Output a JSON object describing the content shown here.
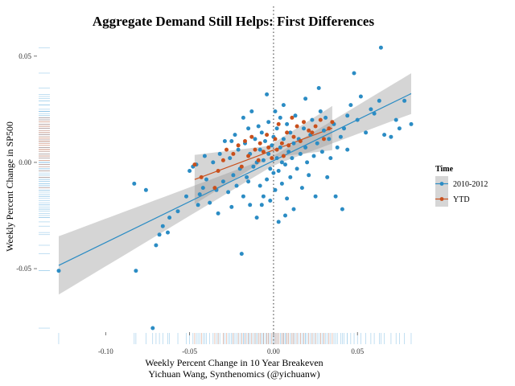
{
  "chart_data": {
    "type": "scatter",
    "title": "Aggregate Demand Still Helps: First Differences",
    "xlabel": "Weekly Percent Change in 10 Year Breakeven",
    "subtitle": "Yichuan Wang, Synthenomics (@yichuanw)",
    "ylabel": "Weekly Percent Change in SP500",
    "xlim": [
      -0.1275,
      0.0825
    ],
    "ylim": [
      -0.0795,
      0.0575
    ],
    "x_ticks": [
      -0.1,
      -0.05,
      0.0,
      0.05
    ],
    "x_tick_labels": [
      "-0.10",
      "-0.05",
      "0.00",
      "0.05"
    ],
    "y_ticks": [
      -0.05,
      0.0,
      0.05
    ],
    "y_tick_labels": [
      "-0.05",
      "0.00",
      "0.05"
    ],
    "vline_x": 0.0,
    "legend": {
      "title": "Time",
      "position": "right",
      "entries": [
        "2010-2012",
        "YTD"
      ]
    },
    "series": [
      {
        "name": "2010-2012",
        "color": "#2b8cc4",
        "fit": {
          "intercept": 0.0008,
          "slope": 0.385,
          "x_range": [
            -0.128,
            0.082
          ]
        },
        "band": {
          "se_at_center": 0.0022,
          "center": 0.0,
          "se_growth": 0.09
        },
        "points": [
          [
            -0.128,
            -0.051
          ],
          [
            -0.082,
            -0.051
          ],
          [
            -0.083,
            -0.01
          ],
          [
            -0.076,
            -0.013
          ],
          [
            -0.072,
            -0.078
          ],
          [
            -0.07,
            -0.039
          ],
          [
            -0.068,
            -0.034
          ],
          [
            -0.066,
            -0.03
          ],
          [
            -0.063,
            -0.033
          ],
          [
            -0.062,
            -0.026
          ],
          [
            -0.057,
            -0.023
          ],
          [
            -0.052,
            -0.016
          ],
          [
            -0.05,
            -0.004
          ],
          [
            -0.048,
            -0.002
          ],
          [
            -0.046,
            -0.001
          ],
          [
            -0.045,
            -0.02
          ],
          [
            -0.044,
            -0.015
          ],
          [
            -0.042,
            -0.012
          ],
          [
            -0.041,
            0.003
          ],
          [
            -0.04,
            -0.008
          ],
          [
            -0.038,
            -0.019
          ],
          [
            -0.036,
            0.0
          ],
          [
            -0.034,
            -0.013
          ],
          [
            -0.033,
            -0.024
          ],
          [
            -0.032,
            0.004
          ],
          [
            -0.03,
            -0.009
          ],
          [
            -0.029,
            0.01
          ],
          [
            -0.027,
            -0.014
          ],
          [
            -0.026,
            0.002
          ],
          [
            -0.025,
            -0.021
          ],
          [
            -0.024,
            -0.006
          ],
          [
            -0.023,
            0.013
          ],
          [
            -0.022,
            -0.011
          ],
          [
            -0.021,
            0.006
          ],
          [
            -0.02,
            -0.003
          ],
          [
            -0.019,
            -0.043
          ],
          [
            -0.018,
            0.021
          ],
          [
            -0.018,
            -0.016
          ],
          [
            -0.017,
            0.009
          ],
          [
            -0.016,
            -0.007
          ],
          [
            -0.015,
            0.016
          ],
          [
            -0.014,
            -0.02
          ],
          [
            -0.014,
            0.004
          ],
          [
            -0.013,
            0.024
          ],
          [
            -0.012,
            -0.002
          ],
          [
            -0.011,
            0.011
          ],
          [
            -0.01,
            -0.026
          ],
          [
            -0.01,
            0.0
          ],
          [
            -0.009,
            0.017
          ],
          [
            -0.008,
            -0.011
          ],
          [
            -0.008,
            0.006
          ],
          [
            -0.007,
            0.014
          ],
          [
            -0.006,
            -0.016
          ],
          [
            -0.006,
            0.001
          ],
          [
            -0.005,
            0.01
          ],
          [
            -0.004,
            0.032
          ],
          [
            -0.004,
            -0.008
          ],
          [
            -0.003,
            0.004
          ],
          [
            -0.003,
            0.019
          ],
          [
            -0.002,
            -0.018
          ],
          [
            -0.002,
            -0.003
          ],
          [
            -0.001,
            0.008
          ],
          [
            0.0,
            -0.005
          ],
          [
            0.0,
            0.012
          ],
          [
            0.001,
            0.024
          ],
          [
            0.001,
            -0.013
          ],
          [
            0.002,
            0.002
          ],
          [
            0.002,
            0.016
          ],
          [
            0.003,
            -0.028
          ],
          [
            0.003,
            -0.004
          ],
          [
            0.004,
            0.007
          ],
          [
            0.004,
            0.021
          ],
          [
            0.005,
            0.0
          ],
          [
            0.005,
            -0.01
          ],
          [
            0.006,
            0.011
          ],
          [
            0.006,
            0.027
          ],
          [
            0.007,
            -0.001
          ],
          [
            0.008,
            0.018
          ],
          [
            0.008,
            -0.017
          ],
          [
            0.009,
            0.005
          ],
          [
            0.01,
            -0.007
          ],
          [
            0.01,
            0.014
          ],
          [
            0.011,
            0.002
          ],
          [
            0.012,
            -0.022
          ],
          [
            0.012,
            0.009
          ],
          [
            0.013,
            0.022
          ],
          [
            0.014,
            -0.003
          ],
          [
            0.015,
            0.011
          ],
          [
            0.016,
            0.004
          ],
          [
            0.017,
            -0.012
          ],
          [
            0.018,
            0.016
          ],
          [
            0.019,
            0.007
          ],
          [
            0.02,
            0.0
          ],
          [
            0.021,
            -0.006
          ],
          [
            0.022,
            0.013
          ],
          [
            0.023,
            0.02
          ],
          [
            0.024,
            0.003
          ],
          [
            0.025,
            -0.016
          ],
          [
            0.026,
            0.009
          ],
          [
            0.027,
            0.035
          ],
          [
            0.028,
            0.024
          ],
          [
            0.029,
            0.005
          ],
          [
            0.03,
            0.015
          ],
          [
            0.032,
            -0.007
          ],
          [
            0.033,
            0.011
          ],
          [
            0.034,
            0.002
          ],
          [
            0.036,
            0.018
          ],
          [
            0.037,
            -0.016
          ],
          [
            0.038,
            0.007
          ],
          [
            0.04,
            0.012
          ],
          [
            0.041,
            -0.022
          ],
          [
            0.042,
            0.016
          ],
          [
            0.044,
            0.006
          ],
          [
            0.046,
            0.027
          ],
          [
            0.048,
            0.042
          ],
          [
            0.05,
            0.02
          ],
          [
            0.052,
            0.031
          ],
          [
            0.055,
            0.014
          ],
          [
            0.058,
            0.025
          ],
          [
            0.06,
            0.023
          ],
          [
            0.063,
            0.029
          ],
          [
            0.064,
            0.054
          ],
          [
            0.066,
            0.013
          ],
          [
            0.07,
            0.012
          ],
          [
            0.073,
            0.02
          ],
          [
            0.075,
            0.016
          ],
          [
            0.078,
            0.029
          ],
          [
            0.082,
            0.018
          ],
          [
            -0.007,
            -0.02
          ],
          [
            0.007,
            -0.025
          ],
          [
            -0.015,
            -0.009
          ],
          [
            0.019,
            0.03
          ],
          [
            -0.025,
            0.01
          ],
          [
            0.031,
            0.021
          ],
          [
            0.044,
            0.022
          ]
        ]
      },
      {
        "name": "YTD",
        "color": "#c9501c",
        "fit": {
          "intercept": 0.0058,
          "slope": 0.295,
          "x_range": [
            -0.047,
            0.035
          ]
        },
        "band": {
          "se_at_center": 0.0028,
          "center": -0.003,
          "se_growth": 0.2
        },
        "points": [
          [
            -0.047,
            -0.001
          ],
          [
            -0.043,
            -0.007
          ],
          [
            -0.035,
            -0.012
          ],
          [
            -0.033,
            -0.004
          ],
          [
            -0.03,
            0.001
          ],
          [
            -0.028,
            0.006
          ],
          [
            -0.024,
            0.004
          ],
          [
            -0.021,
            0.008
          ],
          [
            -0.019,
            -0.002
          ],
          [
            -0.017,
            0.01
          ],
          [
            -0.015,
            0.003
          ],
          [
            -0.013,
            0.012
          ],
          [
            -0.011,
            0.006
          ],
          [
            -0.009,
            0.001
          ],
          [
            -0.008,
            0.009
          ],
          [
            -0.006,
            0.005
          ],
          [
            -0.004,
            0.013
          ],
          [
            -0.003,
            0.007
          ],
          [
            -0.001,
            0.002
          ],
          [
            0.001,
            0.011
          ],
          [
            0.002,
            0.006
          ],
          [
            0.003,
            0.018
          ],
          [
            0.005,
            0.009
          ],
          [
            0.006,
            0.003
          ],
          [
            0.008,
            0.014
          ],
          [
            0.009,
            0.008
          ],
          [
            0.011,
            0.021
          ],
          [
            0.012,
            0.012
          ],
          [
            0.014,
            0.017
          ],
          [
            0.016,
            0.01
          ],
          [
            0.018,
            0.019
          ],
          [
            0.021,
            0.015
          ],
          [
            0.023,
            0.014
          ],
          [
            0.025,
            0.017
          ],
          [
            0.028,
            0.02
          ],
          [
            0.03,
            0.011
          ],
          [
            0.033,
            0.016
          ],
          [
            0.035,
            0.019
          ]
        ]
      }
    ]
  }
}
